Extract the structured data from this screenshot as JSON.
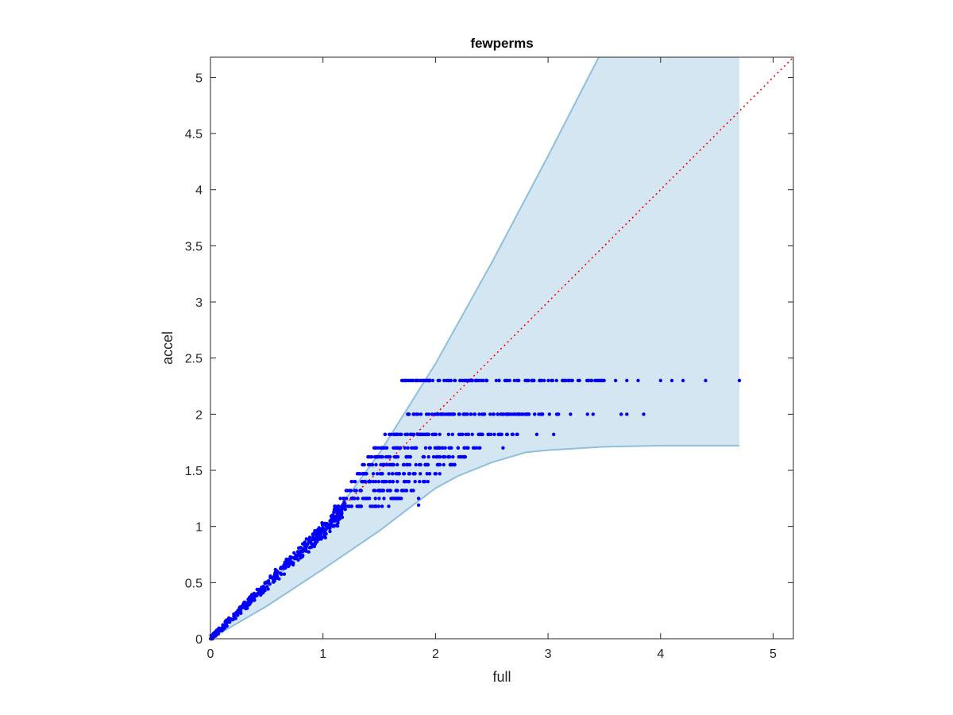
{
  "chart_data": {
    "type": "scatter",
    "title": "fewperms",
    "xlabel": "full",
    "ylabel": "accel",
    "xlim": [
      0,
      5.18
    ],
    "ylim": [
      0,
      5.18
    ],
    "xticks": [
      0,
      1,
      2,
      3,
      4,
      5
    ],
    "xtick_labels": [
      "0",
      "1",
      "2",
      "3",
      "4",
      "5"
    ],
    "yticks": [
      0,
      0.5,
      1,
      1.5,
      2,
      2.5,
      3,
      3.5,
      4,
      4.5,
      5
    ],
    "ytick_labels": [
      "0",
      "0.5",
      "1",
      "1.5",
      "2",
      "2.5",
      "3",
      "3.5",
      "4",
      "4.5",
      "5"
    ],
    "grid": false,
    "legend": "none",
    "band": {
      "upper": [
        [
          0,
          0
        ],
        [
          0.5,
          0.46
        ],
        [
          1.0,
          0.97
        ],
        [
          1.5,
          1.65
        ],
        [
          2.0,
          2.45
        ],
        [
          2.5,
          3.35
        ],
        [
          3.0,
          4.3
        ],
        [
          3.45,
          5.18
        ],
        [
          4.7,
          5.18
        ]
      ],
      "lower": [
        [
          4.7,
          1.72
        ],
        [
          4.0,
          1.72
        ],
        [
          3.5,
          1.71
        ],
        [
          3.0,
          1.68
        ],
        [
          2.8,
          1.66
        ],
        [
          2.5,
          1.57
        ],
        [
          2.2,
          1.45
        ],
        [
          2.0,
          1.34
        ],
        [
          1.8,
          1.19
        ],
        [
          1.5,
          0.96
        ],
        [
          1.0,
          0.62
        ],
        [
          0.5,
          0.29
        ],
        [
          0,
          0
        ]
      ]
    },
    "reference_line": {
      "from": [
        0,
        0
      ],
      "to": [
        5.18,
        5.18
      ],
      "style": "dotted"
    },
    "dense_cloud": {
      "x_range": [
        0,
        1.2
      ],
      "spread": 0.05
    },
    "strips": [
      {
        "y": 2.3,
        "x_range": [
          1.7,
          3.5
        ],
        "count": 120,
        "outliers": [
          3.6,
          3.7,
          3.8,
          4.0,
          4.1,
          4.2,
          4.4,
          4.7
        ]
      },
      {
        "y": 2.0,
        "x_range": [
          1.75,
          3.1
        ],
        "count": 95,
        "outliers": [
          3.2,
          3.35,
          3.4,
          3.65,
          3.7,
          3.85
        ]
      },
      {
        "y": 1.82,
        "x_range": [
          1.55,
          2.75
        ],
        "count": 75,
        "outliers": [
          2.9,
          3.05
        ]
      },
      {
        "y": 1.7,
        "x_range": [
          1.45,
          2.4
        ],
        "count": 60,
        "outliers": [
          2.6
        ]
      },
      {
        "y": 1.62,
        "x_range": [
          1.4,
          2.3
        ],
        "count": 55,
        "outliers": []
      },
      {
        "y": 1.55,
        "x_range": [
          1.35,
          2.2
        ],
        "count": 50,
        "outliers": []
      },
      {
        "y": 1.47,
        "x_range": [
          1.3,
          2.05
        ],
        "count": 45,
        "outliers": []
      },
      {
        "y": 1.4,
        "x_range": [
          1.25,
          1.95
        ],
        "count": 40,
        "outliers": []
      },
      {
        "y": 1.32,
        "x_range": [
          1.2,
          1.85
        ],
        "count": 35,
        "outliers": []
      },
      {
        "y": 1.25,
        "x_range": [
          1.15,
          1.75
        ],
        "count": 30,
        "outliers": [
          1.85
        ]
      },
      {
        "y": 1.18,
        "x_range": [
          1.1,
          1.6
        ],
        "count": 25,
        "outliers": []
      }
    ],
    "colors": {
      "points": "#0000ff",
      "band_fill": "#d5e6f3",
      "band_edge": "#8fbfdc",
      "reference_line": "#ff0000",
      "axes": "#262626"
    }
  }
}
